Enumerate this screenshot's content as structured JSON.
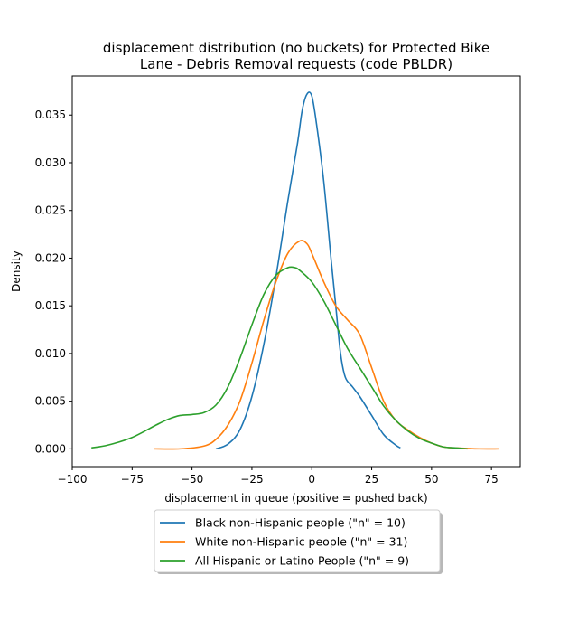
{
  "chart_data": {
    "type": "line",
    "title_lines": [
      "displacement distribution (no buckets)  for Protected Bike",
      "Lane - Debris Removal requests (code PBLDR)"
    ],
    "xlabel": "displacement in queue (positive = pushed back)",
    "ylabel": "Density",
    "xlim": [
      -100,
      87
    ],
    "ylim": [
      -0.00186,
      0.0391
    ],
    "x_ticks": [
      -100,
      -75,
      -50,
      -25,
      0,
      25,
      50,
      75
    ],
    "x_tick_labels": [
      "−100",
      "−75",
      "−50",
      "−25",
      "0",
      "25",
      "50",
      "75"
    ],
    "y_ticks": [
      0.0,
      0.005,
      0.01,
      0.015,
      0.02,
      0.025,
      0.03,
      0.035
    ],
    "y_tick_labels": [
      "0.000",
      "0.005",
      "0.010",
      "0.015",
      "0.020",
      "0.025",
      "0.030",
      "0.035"
    ],
    "grid": false,
    "legend_position": "bottom-center, below axes",
    "series": [
      {
        "name": "Black non-Hispanic people (\"n\" = 10)",
        "color": "#1f77b4",
        "points": [
          [
            -40,
            0.0
          ],
          [
            -35,
            0.0005
          ],
          [
            -30,
            0.002
          ],
          [
            -25,
            0.0055
          ],
          [
            -20,
            0.011
          ],
          [
            -15,
            0.018
          ],
          [
            -10,
            0.026
          ],
          [
            -6,
            0.032
          ],
          [
            -4,
            0.0355
          ],
          [
            -2,
            0.0372
          ],
          [
            0,
            0.037
          ],
          [
            2,
            0.034
          ],
          [
            5,
            0.028
          ],
          [
            8,
            0.02
          ],
          [
            10,
            0.015
          ],
          [
            12,
            0.01
          ],
          [
            14,
            0.0075
          ],
          [
            17,
            0.0065
          ],
          [
            20,
            0.0055
          ],
          [
            25,
            0.0035
          ],
          [
            30,
            0.0015
          ],
          [
            35,
            0.0004
          ],
          [
            37,
            0.0001
          ]
        ]
      },
      {
        "name": "White non-Hispanic people (\"n\" = 31)",
        "color": "#ff7f0e",
        "points": [
          [
            -66,
            0.0
          ],
          [
            -55,
            0.0
          ],
          [
            -45,
            0.0003
          ],
          [
            -40,
            0.001
          ],
          [
            -35,
            0.0025
          ],
          [
            -30,
            0.005
          ],
          [
            -25,
            0.009
          ],
          [
            -20,
            0.0135
          ],
          [
            -15,
            0.0175
          ],
          [
            -10,
            0.0205
          ],
          [
            -5,
            0.0218
          ],
          [
            -2,
            0.0215
          ],
          [
            0,
            0.0205
          ],
          [
            5,
            0.0175
          ],
          [
            10,
            0.015
          ],
          [
            15,
            0.0135
          ],
          [
            20,
            0.012
          ],
          [
            25,
            0.0085
          ],
          [
            30,
            0.005
          ],
          [
            35,
            0.003
          ],
          [
            40,
            0.002
          ],
          [
            45,
            0.0012
          ],
          [
            50,
            0.0006
          ],
          [
            55,
            0.0002
          ],
          [
            60,
            0.0001
          ],
          [
            70,
            0.0
          ],
          [
            78,
            0.0
          ]
        ]
      },
      {
        "name": "All Hispanic or Latino People (\"n\" = 9)",
        "color": "#2ca02c",
        "points": [
          [
            -92,
            0.0001
          ],
          [
            -85,
            0.0004
          ],
          [
            -75,
            0.0012
          ],
          [
            -65,
            0.0025
          ],
          [
            -60,
            0.0031
          ],
          [
            -55,
            0.0035
          ],
          [
            -50,
            0.0036
          ],
          [
            -45,
            0.0038
          ],
          [
            -40,
            0.0046
          ],
          [
            -35,
            0.0065
          ],
          [
            -30,
            0.0095
          ],
          [
            -25,
            0.013
          ],
          [
            -20,
            0.0162
          ],
          [
            -15,
            0.0182
          ],
          [
            -10,
            0.019
          ],
          [
            -7,
            0.019
          ],
          [
            -5,
            0.0187
          ],
          [
            0,
            0.0175
          ],
          [
            5,
            0.0155
          ],
          [
            10,
            0.013
          ],
          [
            15,
            0.0105
          ],
          [
            20,
            0.0085
          ],
          [
            25,
            0.0065
          ],
          [
            30,
            0.0045
          ],
          [
            35,
            0.003
          ],
          [
            40,
            0.0019
          ],
          [
            45,
            0.0011
          ],
          [
            50,
            0.0006
          ],
          [
            55,
            0.0002
          ],
          [
            60,
            0.0001
          ],
          [
            65,
            0.0
          ]
        ]
      }
    ]
  }
}
